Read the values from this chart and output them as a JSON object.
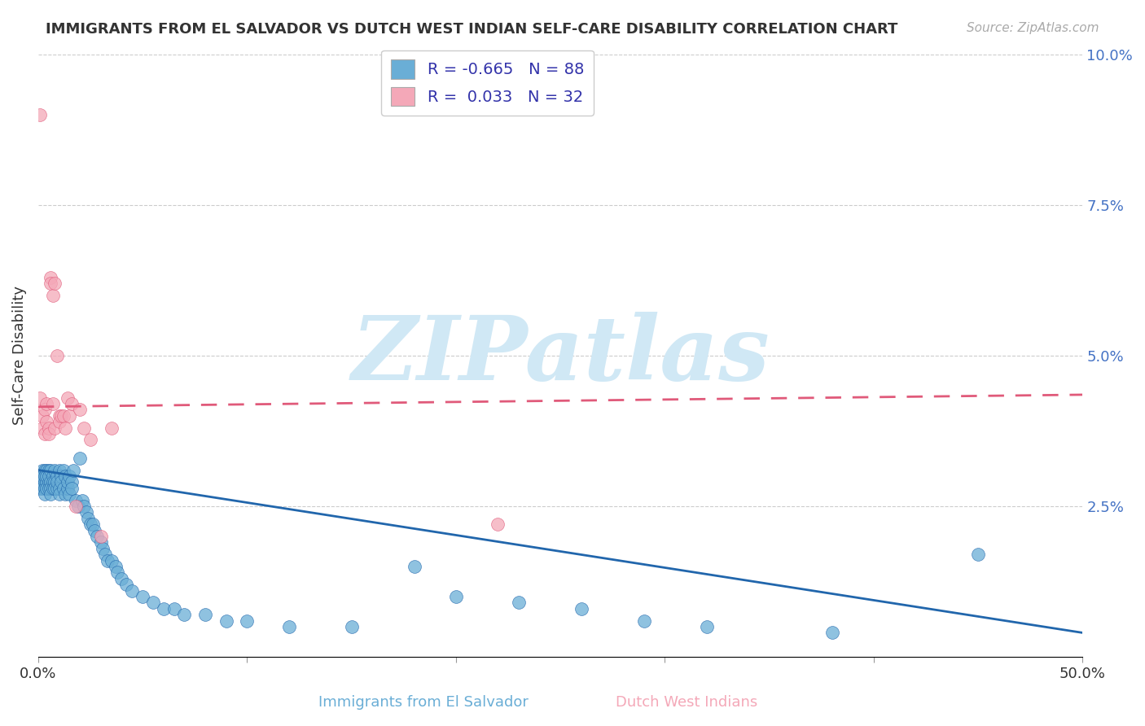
{
  "title": "IMMIGRANTS FROM EL SALVADOR VS DUTCH WEST INDIAN SELF-CARE DISABILITY CORRELATION CHART",
  "source": "Source: ZipAtlas.com",
  "xlabel_blue": "Immigrants from El Salvador",
  "xlabel_pink": "Dutch West Indians",
  "ylabel": "Self-Care Disability",
  "xlim": [
    0,
    0.5
  ],
  "ylim": [
    0,
    0.1
  ],
  "legend_blue_R": "-0.665",
  "legend_blue_N": "88",
  "legend_pink_R": "0.033",
  "legend_pink_N": "32",
  "blue_color": "#6aaed6",
  "pink_color": "#f4a8b8",
  "blue_line_color": "#2166ac",
  "pink_line_color": "#e05a7a",
  "watermark_text": "ZIPatlas",
  "watermark_color": "#d0e8f5",
  "background_color": "#ffffff",
  "grid_color": "#cccccc",
  "blue_x": [
    0.001,
    0.001,
    0.001,
    0.002,
    0.002,
    0.002,
    0.002,
    0.003,
    0.003,
    0.003,
    0.003,
    0.003,
    0.004,
    0.004,
    0.004,
    0.004,
    0.005,
    0.005,
    0.005,
    0.005,
    0.006,
    0.006,
    0.006,
    0.006,
    0.007,
    0.007,
    0.007,
    0.008,
    0.008,
    0.008,
    0.009,
    0.009,
    0.009,
    0.01,
    0.01,
    0.01,
    0.011,
    0.011,
    0.012,
    0.012,
    0.013,
    0.013,
    0.014,
    0.014,
    0.015,
    0.015,
    0.016,
    0.016,
    0.017,
    0.018,
    0.019,
    0.02,
    0.021,
    0.022,
    0.023,
    0.024,
    0.025,
    0.026,
    0.027,
    0.028,
    0.03,
    0.031,
    0.032,
    0.033,
    0.035,
    0.037,
    0.038,
    0.04,
    0.042,
    0.045,
    0.05,
    0.055,
    0.06,
    0.065,
    0.07,
    0.08,
    0.09,
    0.1,
    0.12,
    0.15,
    0.18,
    0.2,
    0.23,
    0.26,
    0.29,
    0.32,
    0.38,
    0.45
  ],
  "blue_y": [
    0.029,
    0.03,
    0.028,
    0.031,
    0.029,
    0.028,
    0.03,
    0.031,
    0.029,
    0.028,
    0.03,
    0.027,
    0.031,
    0.029,
    0.028,
    0.03,
    0.031,
    0.029,
    0.028,
    0.03,
    0.031,
    0.029,
    0.028,
    0.027,
    0.03,
    0.029,
    0.028,
    0.031,
    0.029,
    0.028,
    0.03,
    0.028,
    0.029,
    0.031,
    0.028,
    0.027,
    0.03,
    0.029,
    0.028,
    0.031,
    0.027,
    0.03,
    0.028,
    0.029,
    0.03,
    0.027,
    0.029,
    0.028,
    0.031,
    0.026,
    0.025,
    0.033,
    0.026,
    0.025,
    0.024,
    0.023,
    0.022,
    0.022,
    0.021,
    0.02,
    0.019,
    0.018,
    0.017,
    0.016,
    0.016,
    0.015,
    0.014,
    0.013,
    0.012,
    0.011,
    0.01,
    0.009,
    0.008,
    0.008,
    0.007,
    0.007,
    0.006,
    0.006,
    0.005,
    0.005,
    0.015,
    0.01,
    0.009,
    0.008,
    0.006,
    0.005,
    0.004,
    0.017
  ],
  "pink_x": [
    0.001,
    0.001,
    0.002,
    0.002,
    0.003,
    0.003,
    0.004,
    0.004,
    0.005,
    0.005,
    0.006,
    0.006,
    0.007,
    0.007,
    0.008,
    0.008,
    0.009,
    0.01,
    0.01,
    0.011,
    0.012,
    0.013,
    0.014,
    0.015,
    0.016,
    0.018,
    0.02,
    0.022,
    0.025,
    0.03,
    0.035,
    0.22
  ],
  "pink_y": [
    0.09,
    0.043,
    0.038,
    0.04,
    0.041,
    0.037,
    0.039,
    0.042,
    0.038,
    0.037,
    0.063,
    0.062,
    0.06,
    0.042,
    0.062,
    0.038,
    0.05,
    0.04,
    0.039,
    0.04,
    0.04,
    0.038,
    0.043,
    0.04,
    0.042,
    0.025,
    0.041,
    0.038,
    0.036,
    0.02,
    0.038,
    0.022
  ]
}
